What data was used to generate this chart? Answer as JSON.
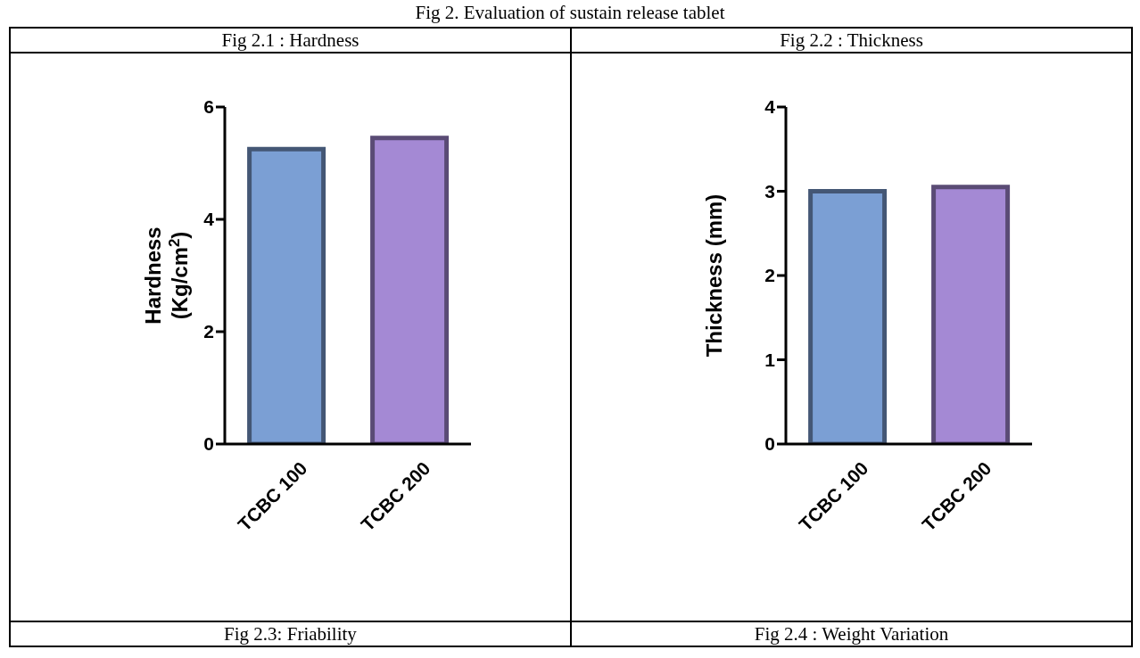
{
  "chart_data": [
    {
      "type": "bar",
      "title": "Fig  2.1 : Hardness",
      "annotations": [
        "Fig 2. Evaluation of sustain release tablet"
      ],
      "ylabel": "Hardness\n(Kg/cm$^{2}$)",
      "categories": [
        "TCBC 100",
        "TCBC 200"
      ],
      "values": [
        5.25,
        5.45
      ],
      "colors": [
        "#7b9fd4",
        "#a489d4"
      ],
      "ylim": [
        0,
        6
      ],
      "yticks": [
        0,
        2,
        4,
        6
      ],
      "grid": false,
      "legend": false
    },
    {
      "type": "bar",
      "title": "Fig  2.2 : Thickness",
      "ylabel": "Thickness (mm)",
      "categories": [
        "TCBC 100",
        "TCBC 200"
      ],
      "values": [
        3.0,
        3.05
      ],
      "colors": [
        "#7b9fd4",
        "#a489d4"
      ],
      "ylim": [
        0,
        4
      ],
      "yticks": [
        0,
        1,
        2,
        3,
        4
      ],
      "grid": false,
      "legend": false
    },
    {
      "type": "other",
      "title": "Fig  2.3: Friability"
    },
    {
      "type": "other",
      "title": "Fig  2.4 : Weight Variation"
    }
  ]
}
